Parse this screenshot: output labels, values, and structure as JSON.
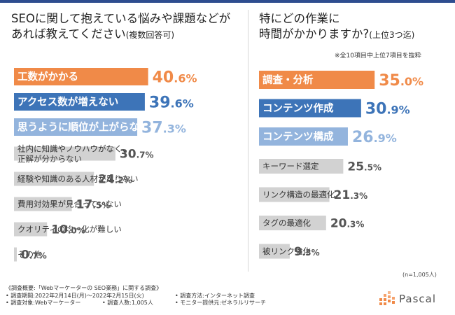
{
  "chart_data": [
    {
      "type": "bar",
      "orientation": "horizontal",
      "title": "SEOに関して抱えている悩みや課題などがあれば教えてください",
      "title_line1": "SEOに関して抱えている悩みや課題などが",
      "title_line2": "あれば教えてください",
      "title_suffix": "(複数回答可)",
      "categories": [
        "工数がかかる",
        "アクセス数が増えない",
        "思うように順位が上がらない",
        "社内に知識やノウハウがなく、正解が分からない",
        "経験や知識のある人材が足りない",
        "費用対効果が見合っていない",
        "クオリティの均一化が難しい",
        "その他"
      ],
      "label_lines": [
        [
          "工数がかかる"
        ],
        [
          "アクセス数が増えない"
        ],
        [
          "思うように順位が上がらない"
        ],
        [
          "社内に知識やノウハウがなく、",
          "正解が分からない"
        ],
        [
          "経験や知識のある人材が足りない"
        ],
        [
          "費用対効果が見合っていない"
        ],
        [
          "クオリティの均一化が難しい"
        ],
        [
          "その他"
        ]
      ],
      "values": [
        40.6,
        39.6,
        37.3,
        30.7,
        24.2,
        17.5,
        10.0,
        0.7
      ],
      "value_labels": [
        "40.6%",
        "39.6%",
        "37.3%",
        "30.7%",
        "24.2%",
        "17.5%",
        "10.0%",
        "0.7%"
      ],
      "xlim": [
        0,
        100
      ]
    },
    {
      "type": "bar",
      "orientation": "horizontal",
      "title": "特にどの作業に時間がかかりますか?",
      "title_line1": "特にどの作業に",
      "title_line2": "時間がかかりますか?",
      "title_suffix": "(上位3つ迄)",
      "note": "※全10項目中上位7項目を抜粋",
      "categories": [
        "調査・分析",
        "コンテンツ作成",
        "コンテンツ構成",
        "キーワード選定",
        "リンク構造の最適化",
        "タグの最適化",
        "被リンク強化"
      ],
      "values": [
        35.0,
        30.9,
        26.9,
        25.5,
        21.3,
        20.3,
        9.3
      ],
      "value_labels": [
        "35.0%",
        "30.9%",
        "26.9%",
        "25.5%",
        "21.3%",
        "20.3%",
        "9.3%"
      ],
      "xlim": [
        0,
        100
      ]
    }
  ],
  "colors": {
    "rank1": "#f08a48",
    "rank2": "#3d74b8",
    "rank3": "#93b4dd",
    "other": "#d2d2d2",
    "label_light": "#ffffff",
    "label_dark": "#333333",
    "header_line": "#2e4d8f"
  },
  "respondents": "(n=1,005人)",
  "footer": {
    "line1": "《調査概要:「Webマーケーターの SEO業務」に関する調査》",
    "line2a": "• 調査期間:2022年2月14日(月)〜2022年2月15日(火)",
    "line2b": "• 調査方法:インターネット調査",
    "line3a": "• 調査対象:Webマーケーター",
    "line3b": "• 調査人数:1,005人",
    "line3c": "• モニター提供元:ゼネラルリサーチ"
  },
  "logo": {
    "name": "Pascal",
    "icon": "pascal-logo-icon"
  }
}
